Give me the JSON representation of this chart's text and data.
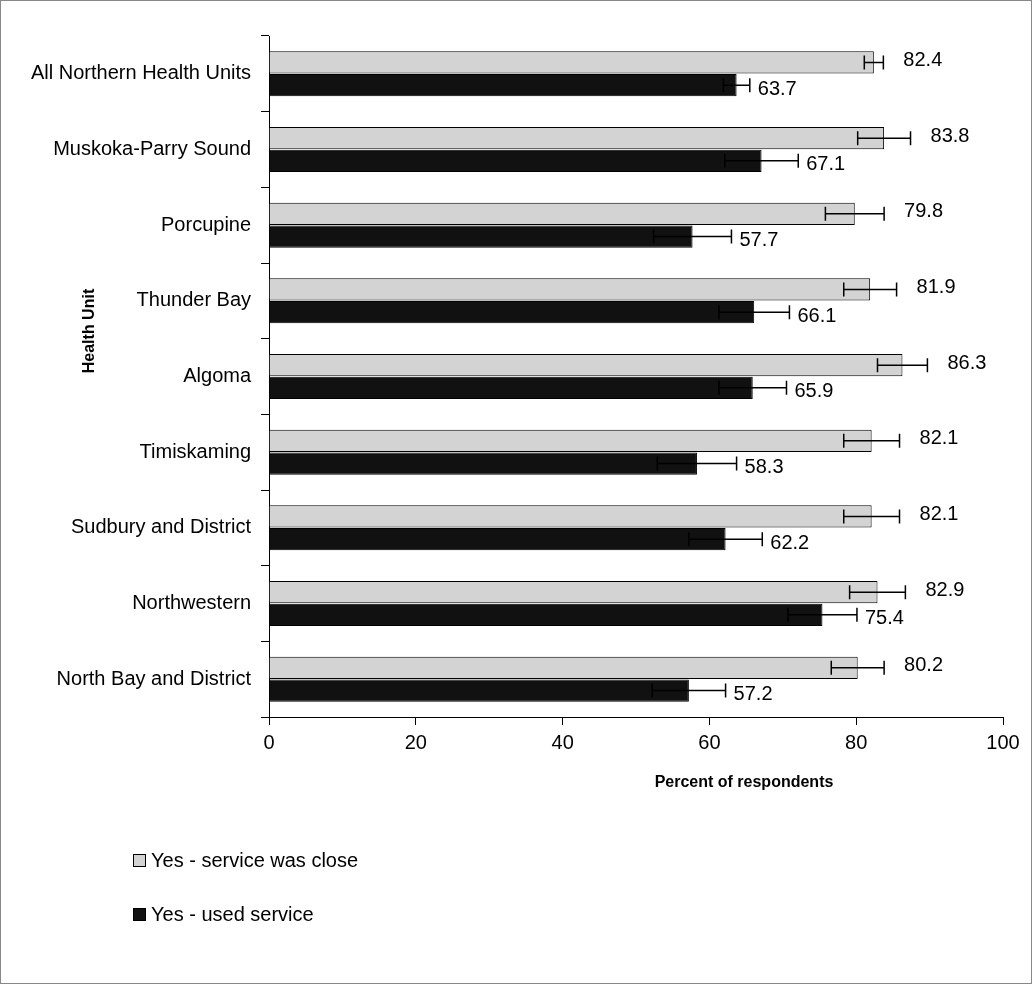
{
  "chart_data": {
    "type": "bar",
    "orientation": "horizontal",
    "xlabel": "Percent of respondents",
    "ylabel": "Health Unit",
    "categories": [
      "All Northern Health Units",
      "Muskoka-Parry Sound",
      "Porcupine",
      "Thunder Bay",
      "Algoma",
      "Timiskaming",
      "Sudbury and District",
      "Northwestern",
      "North Bay and District"
    ],
    "series": [
      {
        "name": "Yes - service was close",
        "color": "#d3d3d3",
        "values": [
          82.4,
          83.8,
          79.8,
          81.9,
          86.3,
          82.1,
          82.1,
          82.9,
          80.2
        ],
        "errors": [
          1.3,
          3.6,
          4.0,
          3.6,
          3.4,
          3.8,
          3.8,
          3.8,
          3.6
        ]
      },
      {
        "name": "Yes - used service",
        "color": "#111111",
        "values": [
          63.7,
          67.1,
          57.7,
          66.1,
          65.9,
          58.3,
          62.2,
          75.4,
          57.2
        ],
        "errors": [
          1.8,
          5.0,
          5.3,
          4.8,
          4.6,
          5.4,
          5.0,
          4.7,
          5.0
        ]
      }
    ],
    "xlim": [
      0,
      100
    ],
    "xticks": [
      0,
      20,
      40,
      60,
      80,
      100
    ],
    "grid": false,
    "legend": "bottom left",
    "data_labels": true
  }
}
